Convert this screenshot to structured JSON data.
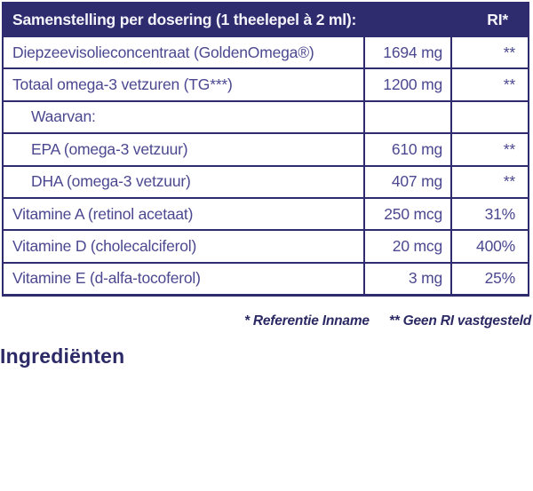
{
  "table": {
    "header": {
      "title": "Samenstelling per dosering (1 theelepel à 2 ml):",
      "ri_label": "RI*"
    },
    "rows": [
      {
        "name": "Diepzeevisolieconcentraat (GoldenOmega®)",
        "amount": "1694 mg",
        "ri": "**"
      },
      {
        "name": "Totaal omega-3 vetzuren (TG***)",
        "amount": "1200 mg",
        "ri": "**"
      },
      {
        "name": "Waarvan:",
        "amount": "",
        "ri": ""
      },
      {
        "name": "EPA (omega-3 vetzuur)",
        "amount": "610 mg",
        "ri": "**"
      },
      {
        "name": "DHA (omega-3 vetzuur)",
        "amount": "407 mg",
        "ri": "**"
      },
      {
        "name": "Vitamine A (retinol acetaat)",
        "amount": "250 mcg",
        "ri": "31%"
      },
      {
        "name": "Vitamine D (cholecalciferol)",
        "amount": "20 mcg",
        "ri": "400%"
      },
      {
        "name": "Vitamine E (d-alfa-tocoferol)",
        "amount": "3 mg",
        "ri": "25%"
      }
    ]
  },
  "footnotes": {
    "note1": "* Referentie Inname",
    "note2": "** Geen RI vastgesteld"
  },
  "section_heading": "Ingrediënten",
  "colors": {
    "header_bg": "#2e2c6e",
    "border": "#2e2c6e",
    "header_text": "#f5f4fb",
    "row_text": "#4b4890",
    "footnote_text": "#2b2963",
    "heading_text": "#2b2a66",
    "background": "#ffffff"
  }
}
